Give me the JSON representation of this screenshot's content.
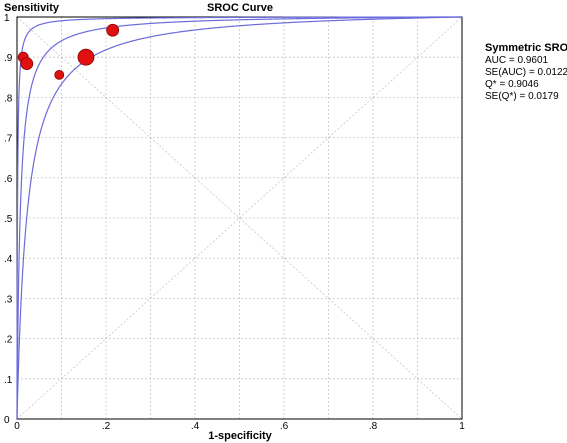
{
  "chart_data": {
    "type": "scatter",
    "title": "SROC Curve",
    "ylabel": "Sensitivity",
    "xlabel": "1-specificity",
    "xlim": [
      0,
      1
    ],
    "ylim": [
      0,
      1
    ],
    "x_ticks": [
      "0",
      ".2",
      ".4",
      ".6",
      ".8",
      "1"
    ],
    "y_ticks": [
      "0",
      ".1",
      ".2",
      ".3",
      ".4",
      ".5",
      ".6",
      ".7",
      ".8",
      ".9",
      "1"
    ],
    "grid": true,
    "curve_color": "#6b6bdc",
    "point_color": "#e01010",
    "points": [
      {
        "x": 0.014,
        "y": 0.9,
        "size": 5
      },
      {
        "x": 0.022,
        "y": 0.884,
        "size": 6
      },
      {
        "x": 0.095,
        "y": 0.856,
        "size": 4.5
      },
      {
        "x": 0.155,
        "y": 0.9,
        "size": 8
      },
      {
        "x": 0.215,
        "y": 0.967,
        "size": 6
      }
    ],
    "curves": [
      {
        "role": "lower",
        "dor": 45
      },
      {
        "role": "center",
        "dor": 143
      },
      {
        "role": "upper",
        "dor": 950
      }
    ],
    "stats": {
      "heading": "Symmetric SROC",
      "lines": [
        "AUC = 0.9601",
        "SE(AUC) = 0.0122",
        "Q* = 0.9046",
        "SE(Q*) = 0.0179"
      ]
    }
  }
}
